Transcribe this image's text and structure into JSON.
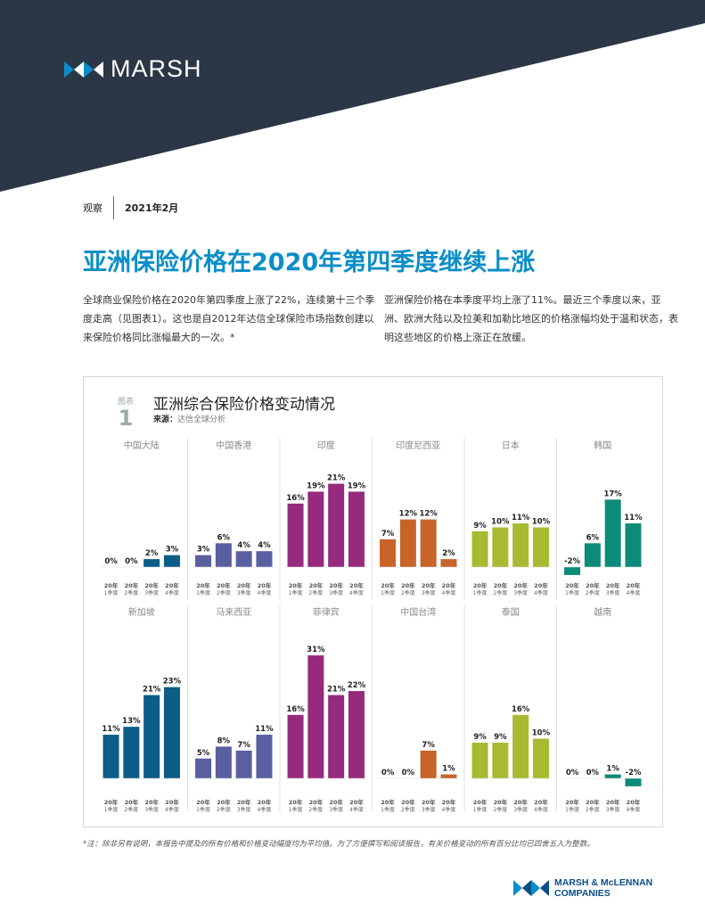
{
  "brand": {
    "name": "MARSH"
  },
  "meta": {
    "section": "观察",
    "date": "2021年2月"
  },
  "title": "亚洲保险价格在2020年第四季度继续上涨",
  "intro": {
    "left": "全球商业保险价格在2020年第四季度上涨了22%，连续第十三个季度走高（见图表1）。这也是自2012年达信全球保险市场指数创建以来保险价格同比涨幅最大的一次。*",
    "right": "亚洲保险价格在本季度平均上涨了11%。最近三个季度以来，亚洲、欧洲大陆以及拉美和加勒比地区的价格涨幅均处于温和状态，表明这些地区的价格上涨正在放缓。"
  },
  "chart_header": {
    "label": "图表",
    "number": "1",
    "title": "亚洲综合保险价格变动情况",
    "source_label": "来源：",
    "source_value": "达信全球分析"
  },
  "chart_data": {
    "type": "bar",
    "title": "亚洲综合保险价格变动情况",
    "categories": [
      "20年 1季度",
      "20年 2季度",
      "20年 3季度",
      "20年 4季度"
    ],
    "tick_year": "20年",
    "tick_quarters": [
      "1季度",
      "2季度",
      "3季度",
      "4季度"
    ],
    "unit": "%",
    "ylim": [
      -3,
      31
    ],
    "panels": [
      {
        "name": "中国大陆",
        "values": [
          0,
          0,
          2,
          3
        ],
        "color": "#0b5c87"
      },
      {
        "name": "中国香港",
        "values": [
          3,
          6,
          4,
          4
        ],
        "color": "#5a5fa0"
      },
      {
        "name": "印度",
        "values": [
          16,
          19,
          21,
          19
        ],
        "color": "#962a7c"
      },
      {
        "name": "印度尼西亚",
        "values": [
          7,
          12,
          12,
          2
        ],
        "color": "#c8632a"
      },
      {
        "name": "日本",
        "values": [
          9,
          10,
          11,
          10
        ],
        "color": "#a8ba32"
      },
      {
        "name": "韩国",
        "values": [
          -2,
          6,
          17,
          11
        ],
        "color": "#0d8a78"
      },
      {
        "name": "新加坡",
        "values": [
          11,
          13,
          21,
          23
        ],
        "color": "#0b5c87"
      },
      {
        "name": "马来西亚",
        "values": [
          5,
          8,
          7,
          11
        ],
        "color": "#5a5fa0"
      },
      {
        "name": "菲律宾",
        "values": [
          16,
          31,
          21,
          22
        ],
        "color": "#962a7c"
      },
      {
        "name": "中国台湾",
        "values": [
          0,
          0,
          7,
          1
        ],
        "color": "#c8632a"
      },
      {
        "name": "泰国",
        "values": [
          9,
          9,
          16,
          10
        ],
        "color": "#a8ba32"
      },
      {
        "name": "越南",
        "values": [
          0,
          0,
          1,
          -2
        ],
        "color": "#0d8a78"
      }
    ]
  },
  "footnote": "*注：除非另有说明，本报告中提及的所有价格和价格变动幅度均为平均值。为了方便撰写和阅读报告，有关价格变动的所有百分比均已四舍五入为整数。",
  "footer_brand": {
    "line1": "MARSH & McLENNAN",
    "line2": "COMPANIES"
  }
}
